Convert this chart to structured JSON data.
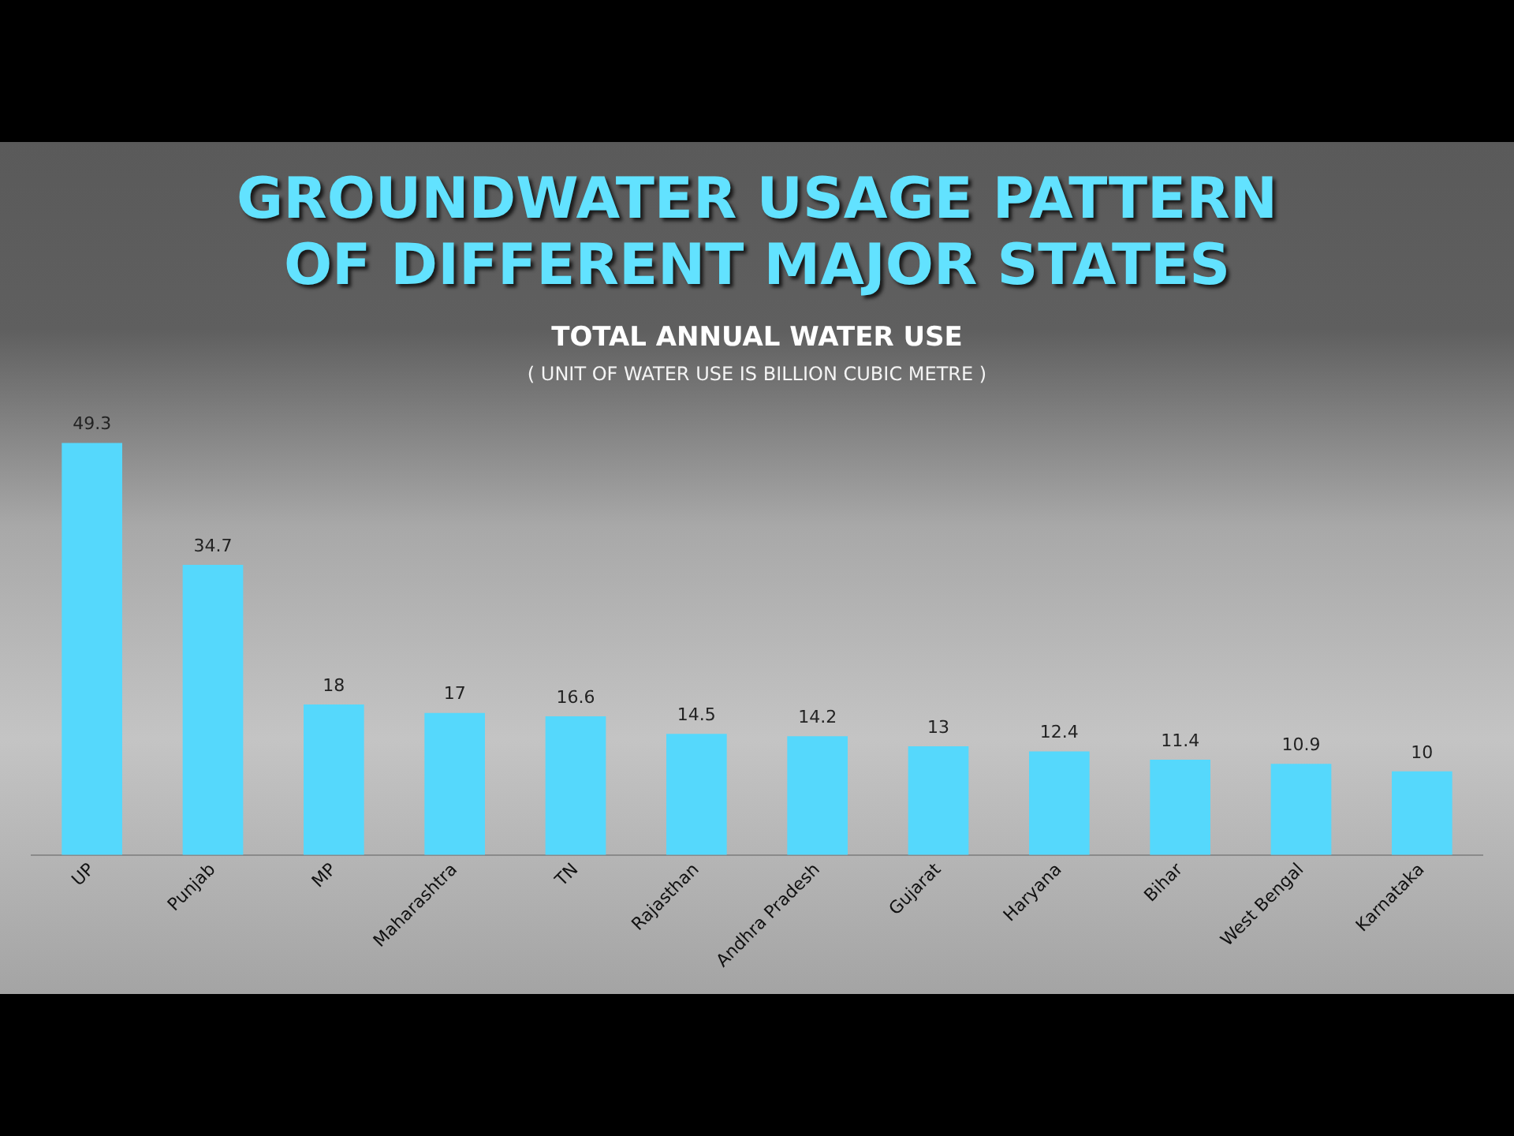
{
  "chart_data": {
    "type": "bar",
    "title": "GROUNDWATER USAGE PATTERN OF DIFFERENT MAJOR STATES",
    "subtitle": "TOTAL ANNUAL WATER USE",
    "annotations": [
      "( UNIT OF WATER USE IS BILLION CUBIC METRE )"
    ],
    "categories": [
      "UP",
      "Punjab",
      "MP",
      "Maharashtra",
      "TN",
      "Rajasthan",
      "Andhra Pradesh",
      "Gujarat",
      "Haryana",
      "Bihar",
      "West Bengal",
      "Karnataka"
    ],
    "values": [
      49.3,
      34.7,
      18,
      17,
      16.6,
      14.5,
      14.2,
      13,
      12.4,
      11.4,
      10.9,
      10
    ],
    "color": "#55d8fc",
    "data_labels": true,
    "grid": false,
    "legend": false,
    "tick_labels": "x"
  }
}
